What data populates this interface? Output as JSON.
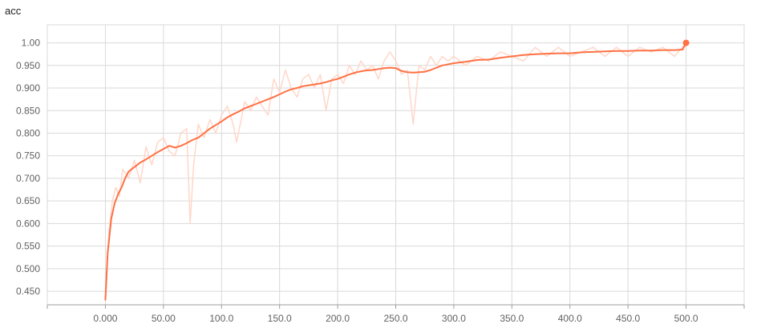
{
  "chart_data": {
    "type": "line",
    "title": "acc",
    "xlabel": "",
    "ylabel": "",
    "xlim": [
      -50,
      550
    ],
    "ylim": [
      0.42,
      1.04
    ],
    "grid": true,
    "x_ticks": [
      0,
      50,
      100,
      150,
      200,
      250,
      300,
      350,
      400,
      450,
      500
    ],
    "x_tick_labels": [
      "0.000",
      "50.00",
      "100.0",
      "150.0",
      "200.0",
      "250.0",
      "300.0",
      "350.0",
      "400.0",
      "450.0",
      "500.0"
    ],
    "y_ticks": [
      0.45,
      0.5,
      0.55,
      0.6,
      0.65,
      0.7,
      0.75,
      0.8,
      0.85,
      0.9,
      0.95,
      1.0
    ],
    "y_tick_labels": [
      "0.450",
      "0.500",
      "0.550",
      "0.600",
      "0.650",
      "0.700",
      "0.750",
      "0.800",
      "0.850",
      "0.900",
      "0.950",
      "1.00"
    ],
    "colors": {
      "smoothed": "#ff7043",
      "raw": "#ffd7c9"
    },
    "series": [
      {
        "role": "raw",
        "x": [
          0,
          3,
          6,
          9,
          12,
          15,
          20,
          25,
          30,
          35,
          40,
          45,
          50,
          55,
          60,
          65,
          70,
          73,
          76,
          80,
          85,
          90,
          95,
          100,
          105,
          110,
          113,
          120,
          125,
          130,
          135,
          140,
          145,
          150,
          155,
          160,
          165,
          170,
          175,
          180,
          185,
          190,
          195,
          200,
          205,
          210,
          215,
          220,
          225,
          230,
          235,
          240,
          245,
          250,
          255,
          260,
          265,
          270,
          275,
          280,
          285,
          290,
          295,
          300,
          310,
          320,
          330,
          340,
          350,
          360,
          370,
          380,
          390,
          400,
          410,
          420,
          430,
          440,
          450,
          460,
          470,
          480,
          490,
          500
        ],
        "y": [
          0.43,
          0.58,
          0.65,
          0.68,
          0.66,
          0.72,
          0.7,
          0.74,
          0.69,
          0.77,
          0.73,
          0.78,
          0.79,
          0.76,
          0.75,
          0.8,
          0.81,
          0.6,
          0.73,
          0.82,
          0.79,
          0.83,
          0.8,
          0.84,
          0.86,
          0.82,
          0.78,
          0.87,
          0.85,
          0.88,
          0.86,
          0.84,
          0.92,
          0.89,
          0.94,
          0.9,
          0.88,
          0.92,
          0.93,
          0.9,
          0.93,
          0.85,
          0.92,
          0.93,
          0.91,
          0.95,
          0.93,
          0.96,
          0.94,
          0.95,
          0.92,
          0.96,
          0.98,
          0.96,
          0.93,
          0.94,
          0.82,
          0.95,
          0.94,
          0.97,
          0.95,
          0.97,
          0.96,
          0.97,
          0.95,
          0.97,
          0.96,
          0.98,
          0.97,
          0.96,
          0.99,
          0.97,
          0.99,
          0.97,
          0.98,
          0.99,
          0.97,
          0.99,
          0.97,
          0.99,
          0.98,
          0.99,
          0.97,
          1.0
        ]
      },
      {
        "role": "smoothed",
        "x": [
          0,
          2,
          5,
          8,
          11,
          14,
          17,
          20,
          25,
          30,
          35,
          40,
          45,
          50,
          55,
          60,
          65,
          70,
          75,
          80,
          85,
          90,
          95,
          100,
          105,
          110,
          115,
          120,
          125,
          130,
          135,
          140,
          145,
          150,
          155,
          160,
          165,
          170,
          175,
          180,
          185,
          190,
          195,
          200,
          205,
          210,
          215,
          220,
          225,
          230,
          235,
          240,
          245,
          250,
          255,
          260,
          265,
          270,
          275,
          280,
          290,
          300,
          310,
          320,
          330,
          340,
          350,
          360,
          370,
          380,
          390,
          400,
          410,
          420,
          430,
          440,
          450,
          460,
          470,
          480,
          490,
          497,
          500
        ],
        "y": [
          0.43,
          0.535,
          0.61,
          0.645,
          0.665,
          0.68,
          0.7,
          0.715,
          0.725,
          0.735,
          0.742,
          0.75,
          0.758,
          0.765,
          0.772,
          0.768,
          0.772,
          0.778,
          0.785,
          0.79,
          0.8,
          0.81,
          0.818,
          0.826,
          0.835,
          0.842,
          0.848,
          0.855,
          0.86,
          0.865,
          0.87,
          0.875,
          0.88,
          0.886,
          0.892,
          0.897,
          0.9,
          0.904,
          0.906,
          0.908,
          0.91,
          0.913,
          0.917,
          0.92,
          0.925,
          0.93,
          0.934,
          0.937,
          0.939,
          0.94,
          0.942,
          0.944,
          0.945,
          0.944,
          0.938,
          0.935,
          0.934,
          0.935,
          0.936,
          0.94,
          0.95,
          0.955,
          0.958,
          0.962,
          0.963,
          0.967,
          0.97,
          0.973,
          0.975,
          0.976,
          0.977,
          0.977,
          0.979,
          0.98,
          0.981,
          0.982,
          0.982,
          0.983,
          0.983,
          0.984,
          0.984,
          0.985,
          1.0
        ]
      }
    ]
  }
}
